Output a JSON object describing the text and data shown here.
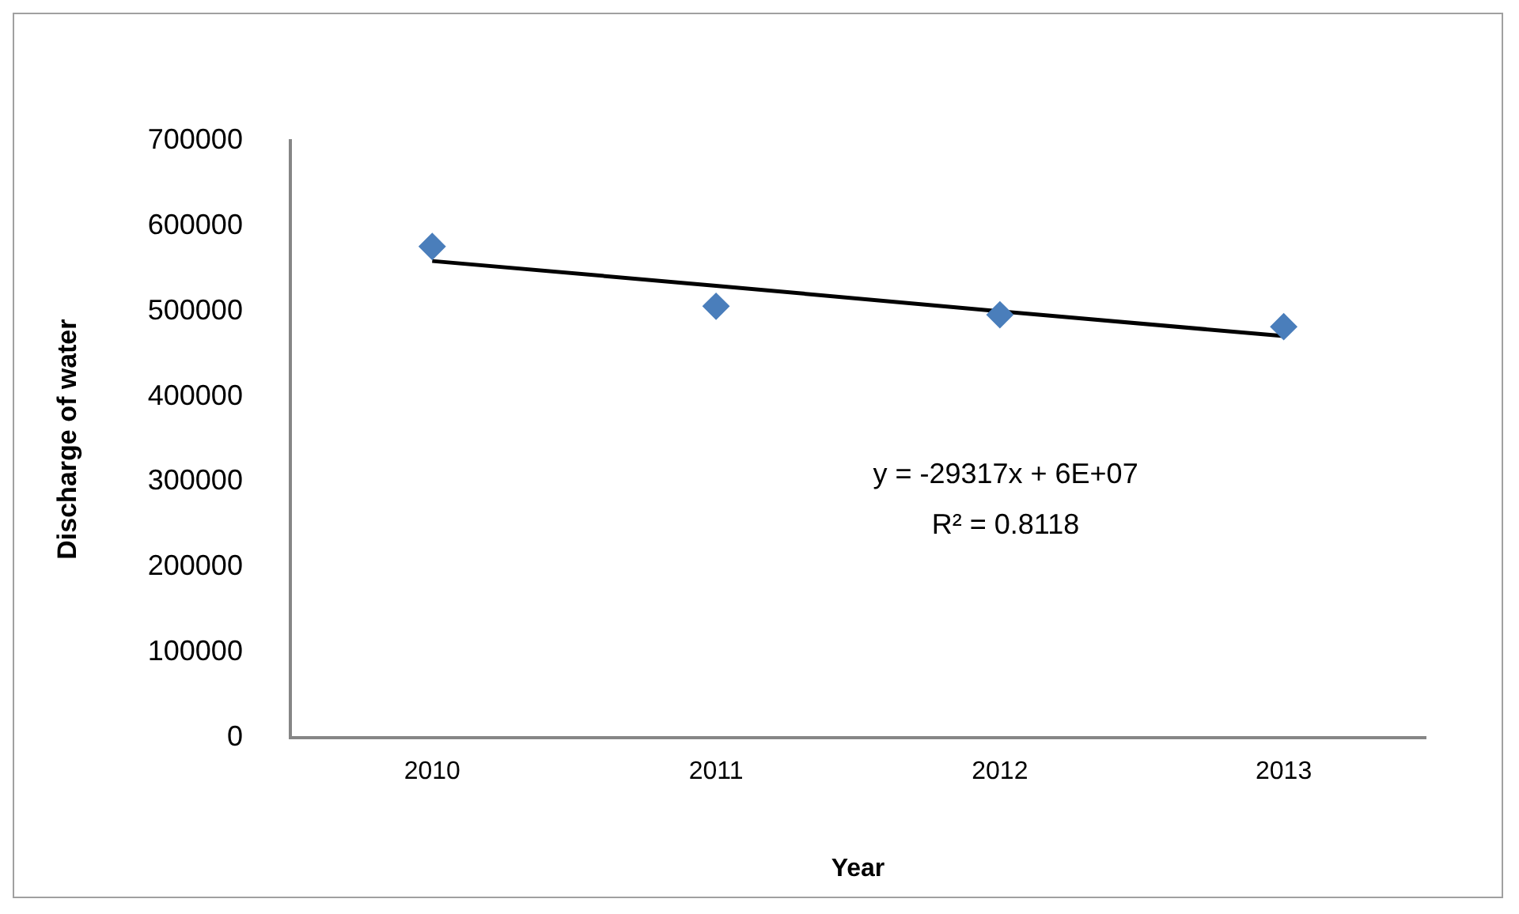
{
  "chart_data": {
    "type": "scatter",
    "xlabel": "Year",
    "ylabel": "Discharge of water",
    "categories": [
      "2010",
      "2011",
      "2012",
      "2013"
    ],
    "series": [
      {
        "type": "scatter",
        "color": "#4a7ebb",
        "marker": "diamond",
        "values": [
          576000,
          506000,
          496000,
          482000
        ]
      },
      {
        "type": "line",
        "color": "#000000",
        "marker": "none",
        "values": [
          559000,
          530000,
          500000,
          471000
        ]
      }
    ],
    "ylim": [
      0,
      700000
    ],
    "yticks": [
      0,
      100000,
      200000,
      300000,
      400000,
      500000,
      600000,
      700000
    ],
    "grid": false,
    "legend": false,
    "annotations": [
      "y = -29317x + 6E+07",
      "R² = 0.8118"
    ]
  }
}
